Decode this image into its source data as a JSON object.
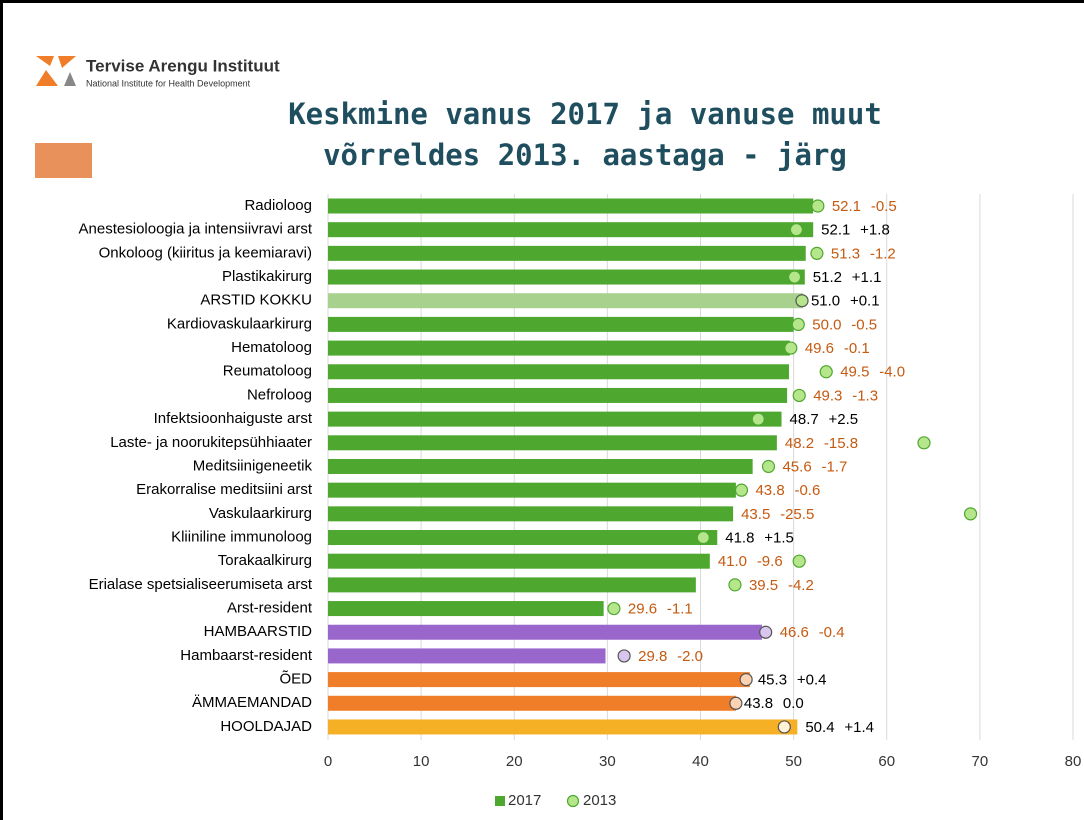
{
  "header": {
    "org": "Tervise Arengu Instituut",
    "org_sub": "National Institute for Health Development"
  },
  "chart_data": {
    "type": "bar",
    "orientation": "horizontal",
    "title": [
      "Keskmine vanus 2017 ja vanuse muut",
      "võrreldes 2013. aastaga - järg"
    ],
    "categories": [
      "Radioloog",
      "Anestesioloogia ja intensiivravi arst",
      "Onkoloog (kiiritus ja keemiaravi)",
      "Plastikakirurg",
      "ARSTID KOKKU",
      "Kardiovaskulaarkirurg",
      "Hematoloog",
      "Reumatoloog",
      "Nefroloog",
      "Infektsioonhaiguste arst",
      "Laste- ja noorukitepsühhiaater",
      "Meditsiinigeneetik",
      "Erakorralise meditsiini arst",
      "Vaskulaarkirurg",
      "Kliiniline immunoloog",
      "Torakaalkirurg",
      "Erialase spetsialiseerumiseta arst",
      "Arst-resident",
      "HAMBAARSTID",
      "Hambaarst-resident",
      "ÕED",
      "ÄMMAEMANDAD",
      "HOOLDAJAD"
    ],
    "series": [
      {
        "name": "2017",
        "color": "#4ea72e",
        "values": [
          52.1,
          52.1,
          51.3,
          51.2,
          51.0,
          50.0,
          49.6,
          49.5,
          49.3,
          48.7,
          48.2,
          45.6,
          43.8,
          43.5,
          41.8,
          41.0,
          39.5,
          29.6,
          46.6,
          29.8,
          45.3,
          43.8,
          50.4
        ],
        "value_labels": [
          "52.1",
          "52.1",
          "51.3",
          "51.2",
          "51.0",
          "50.0",
          "49.6",
          "49.5",
          "49.3",
          "48.7",
          "48.2",
          "45.6",
          "43.8",
          "43.5",
          "41.8",
          "41.0",
          "39.5",
          "29.6",
          "46.6",
          "29.8",
          "45.3",
          "43.8",
          "50.4"
        ],
        "colors": [
          "#4ea72e",
          "#4ea72e",
          "#4ea72e",
          "#4ea72e",
          "#a9d18e",
          "#4ea72e",
          "#4ea72e",
          "#4ea72e",
          "#4ea72e",
          "#4ea72e",
          "#4ea72e",
          "#4ea72e",
          "#4ea72e",
          "#4ea72e",
          "#4ea72e",
          "#4ea72e",
          "#4ea72e",
          "#4ea72e",
          "#9966cc",
          "#9966cc",
          "#f07d28",
          "#f07d28",
          "#f5b025"
        ]
      },
      {
        "name": "2013",
        "color": "#b5e68c",
        "values": [
          52.6,
          50.3,
          52.5,
          50.1,
          50.9,
          50.5,
          49.7,
          53.5,
          50.6,
          46.2,
          64.0,
          47.3,
          44.4,
          69.0,
          40.3,
          50.6,
          43.7,
          30.7,
          47.0,
          31.8,
          44.9,
          43.8,
          49.0
        ],
        "colors": [
          "#b5e68c",
          "#b5e68c",
          "#b5e68c",
          "#b5e68c",
          "#b5e68c",
          "#b5e68c",
          "#b5e68c",
          "#b5e68c",
          "#b5e68c",
          "#b5e68c",
          "#b5e68c",
          "#b5e68c",
          "#b5e68c",
          "#b5e68c",
          "#b5e68c",
          "#b5e68c",
          "#b5e68c",
          "#b5e68c",
          "#d9c6ee",
          "#d9c6ee",
          "#fbd3b3",
          "#fbd3b3",
          "#fff2d6"
        ]
      }
    ],
    "changes": [
      -0.5,
      1.8,
      -1.2,
      1.1,
      0.1,
      -0.5,
      -0.1,
      -4.0,
      -1.3,
      2.5,
      -15.8,
      -1.7,
      -0.6,
      -25.5,
      1.5,
      -9.6,
      -4.2,
      -1.1,
      -0.4,
      -2.0,
      0.4,
      0.0,
      1.4
    ],
    "change_labels": [
      "-0.5",
      "+1.8",
      "-1.2",
      "+1.1",
      "+0.1",
      "-0.5",
      "-0.1",
      "-4.0",
      "-1.3",
      "+2.5",
      "-15.8",
      "-1.7",
      "-0.6",
      "-25.5",
      "+1.5",
      "-9.6",
      "-4.2",
      "-1.1",
      "-0.4",
      "-2.0",
      "+0.4",
      "0.0",
      "+1.4"
    ],
    "xlim": [
      0,
      80
    ],
    "xticks": [
      0,
      10,
      20,
      30,
      40,
      50,
      60,
      70,
      80
    ],
    "grid": true,
    "legend": "bottom"
  }
}
